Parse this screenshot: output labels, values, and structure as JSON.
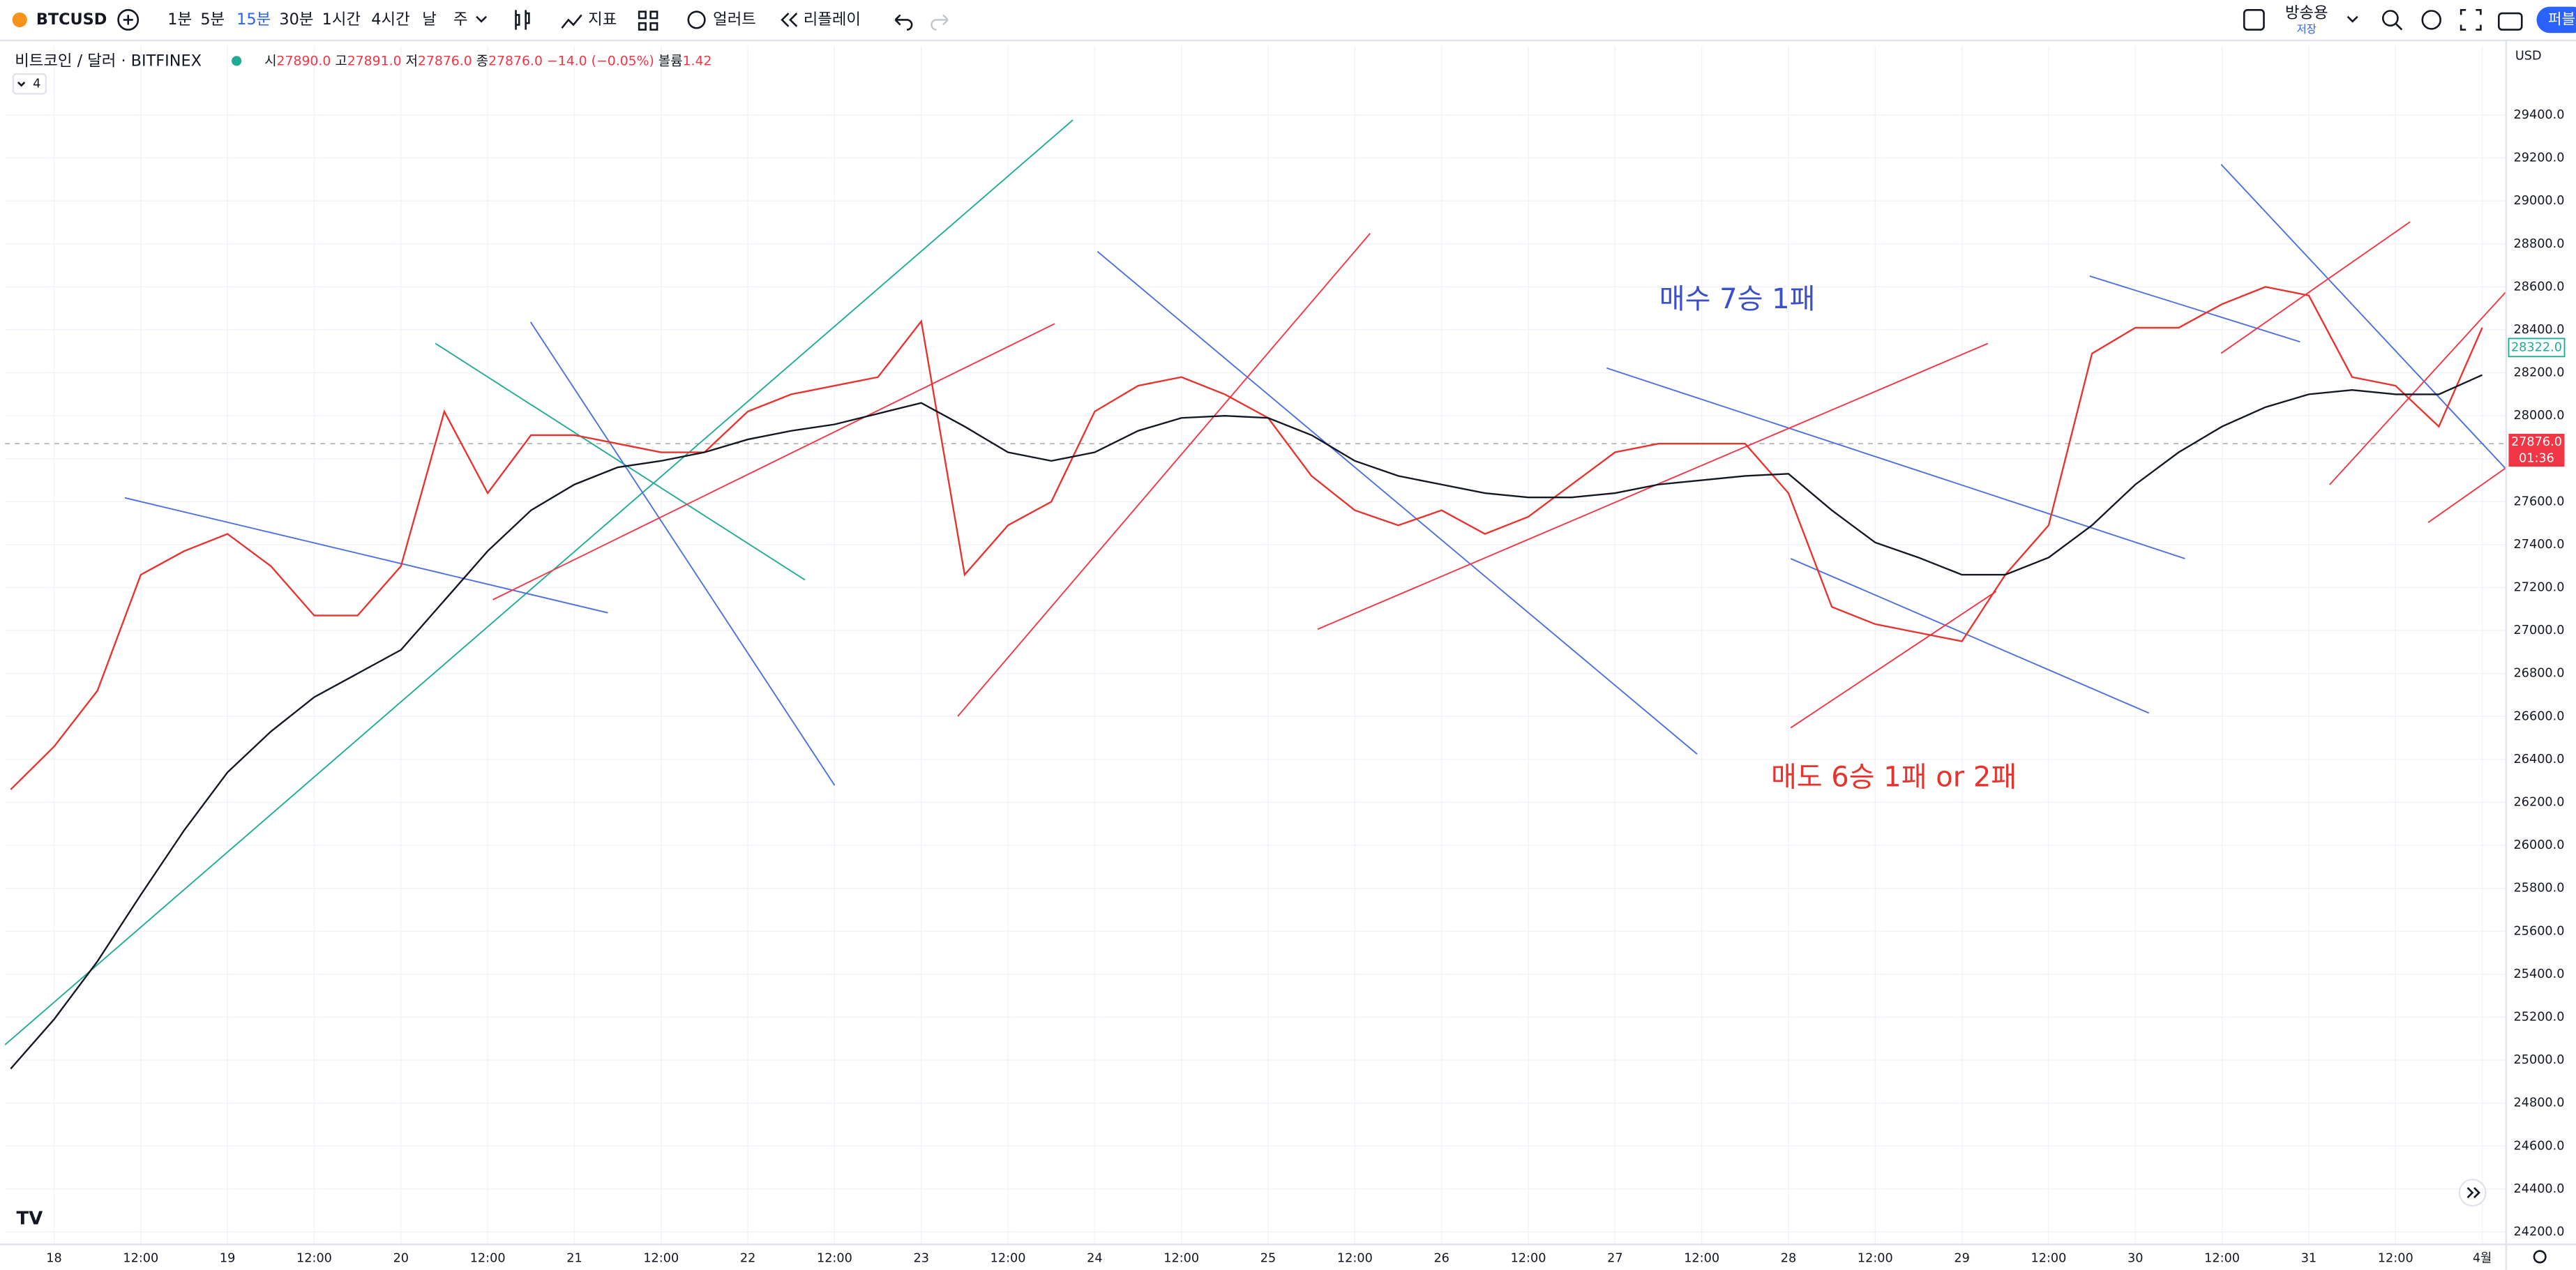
{
  "toolbar": {
    "symbol": "BTCUSD",
    "intervals": [
      {
        "label": "1분",
        "active": false
      },
      {
        "label": "5분",
        "active": false
      },
      {
        "label": "15분",
        "active": true
      },
      {
        "label": "30분",
        "active": false
      },
      {
        "label": "1시간",
        "active": false
      },
      {
        "label": "4시간",
        "active": false
      },
      {
        "label": "날",
        "active": false
      },
      {
        "label": "주",
        "active": false
      }
    ],
    "indicators": "지표",
    "alert": "얼러트",
    "replay": "리플레이",
    "layout_name": "방송용",
    "save_status": "저장",
    "publish": "퍼블"
  },
  "legend": {
    "title": "비트코인 / 달러 · BITFINEX",
    "open_label": "시",
    "open": "27890.0",
    "high_label": "고",
    "high": "27891.0",
    "low_label": "저",
    "low": "27876.0",
    "close_label": "종",
    "close": "27876.0",
    "change": "−14.0 (−0.05%)",
    "volume_label": "볼륨",
    "volume": "1.42",
    "indicator_count": "4"
  },
  "price_scale": {
    "currency": "USD",
    "ma_value": "28322.0",
    "last_price": "27876.0",
    "countdown": "01:36"
  },
  "chart_data": {
    "type": "line",
    "grid": true,
    "annotations": [
      "매수 7승 1패",
      "매도 6승 1패 or 2패"
    ],
    "x": [
      -6,
      0,
      6,
      12,
      18,
      24,
      30,
      36,
      42,
      48,
      54,
      60,
      66,
      72,
      78,
      84,
      90,
      96,
      102,
      108,
      114,
      120,
      126,
      132,
      138,
      144,
      150,
      156,
      162,
      168,
      174,
      180,
      186,
      192,
      198,
      204,
      210,
      216,
      222,
      228,
      234,
      240,
      246,
      252,
      258,
      264,
      270,
      276,
      282,
      288,
      294,
      300,
      306,
      312,
      318,
      324,
      330,
      336
    ],
    "series": [
      {
        "color": "#e8322d",
        "values": [
          26260,
          26460,
          26720,
          27260,
          27370,
          27450,
          27300,
          27070,
          27070,
          27300,
          28020,
          27640,
          27910,
          27910,
          27870,
          27830,
          27830,
          28020,
          28100,
          28140,
          28180,
          28440,
          27260,
          27490,
          27600,
          28020,
          28140,
          28180,
          28100,
          27990,
          27720,
          27560,
          27490,
          27560,
          27450,
          27530,
          27680,
          27830,
          27870,
          27870,
          27870,
          27640,
          27110,
          27030,
          26990,
          26950,
          27260,
          27490,
          28290,
          28410,
          28410,
          28520,
          28600,
          28560,
          28180,
          28140,
          27950,
          28410
        ]
      },
      {
        "color": "#131722",
        "values": [
          24960,
          25190,
          25460,
          25770,
          26070,
          26340,
          26530,
          26690,
          26800,
          26910,
          27140,
          27370,
          27560,
          27680,
          27760,
          27790,
          27830,
          27890,
          27930,
          27960,
          28010,
          28060,
          27950,
          27830,
          27790,
          27830,
          27930,
          27990,
          28000,
          27990,
          27910,
          27790,
          27720,
          27680,
          27640,
          27620,
          27620,
          27640,
          27680,
          27700,
          27720,
          27730,
          27560,
          27410,
          27340,
          27260,
          27260,
          27340,
          27490,
          27680,
          27830,
          27950,
          28040,
          28100,
          28120,
          28100,
          28100,
          28190
        ]
      }
    ],
    "xlim": [
      -6.8,
      339.2
    ],
    "xticks": [
      {
        "value": 0,
        "label": "18"
      },
      {
        "value": 12,
        "label": "12:00"
      },
      {
        "value": 24,
        "label": "19"
      },
      {
        "value": 36,
        "label": "12:00"
      },
      {
        "value": 48,
        "label": "20"
      },
      {
        "value": 60,
        "label": "12:00"
      },
      {
        "value": 72,
        "label": "21"
      },
      {
        "value": 84,
        "label": "12:00"
      },
      {
        "value": 96,
        "label": "22"
      },
      {
        "value": 108,
        "label": "12:00"
      },
      {
        "value": 120,
        "label": "23"
      },
      {
        "value": 132,
        "label": "12:00"
      },
      {
        "value": 144,
        "label": "24"
      },
      {
        "value": 156,
        "label": "12:00"
      },
      {
        "value": 168,
        "label": "25"
      },
      {
        "value": 180,
        "label": "12:00"
      },
      {
        "value": 192,
        "label": "26"
      },
      {
        "value": 204,
        "label": "12:00"
      },
      {
        "value": 216,
        "label": "27"
      },
      {
        "value": 228,
        "label": "12:00"
      },
      {
        "value": 240,
        "label": "28"
      },
      {
        "value": 252,
        "label": "12:00"
      },
      {
        "value": 264,
        "label": "29"
      },
      {
        "value": 276,
        "label": "12:00"
      },
      {
        "value": 288,
        "label": "30"
      },
      {
        "value": 300,
        "label": "12:00"
      },
      {
        "value": 312,
        "label": "31"
      },
      {
        "value": 324,
        "label": "12:00"
      },
      {
        "value": 336,
        "label": "4월"
      }
    ],
    "ylim": [
      24146,
      29721
    ],
    "yticks": [
      {
        "value": 24200,
        "label": "24200.0"
      },
      {
        "value": 24400,
        "label": "24400.0"
      },
      {
        "value": 24600,
        "label": "24600.0"
      },
      {
        "value": 24800,
        "label": "24800.0"
      },
      {
        "value": 25000,
        "label": "25000.0"
      },
      {
        "value": 25200,
        "label": "25200.0"
      },
      {
        "value": 25400,
        "label": "25400.0"
      },
      {
        "value": 25600,
        "label": "25600.0"
      },
      {
        "value": 25800,
        "label": "25800.0"
      },
      {
        "value": 26000,
        "label": "26000.0"
      },
      {
        "value": 26200,
        "label": "26200.0"
      },
      {
        "value": 26400,
        "label": "26400.0"
      },
      {
        "value": 26600,
        "label": "26600.0"
      },
      {
        "value": 26800,
        "label": "26800.0"
      },
      {
        "value": 27000,
        "label": "27000.0"
      },
      {
        "value": 27200,
        "label": "27200.0"
      },
      {
        "value": 27400,
        "label": "27400.0"
      },
      {
        "value": 27600,
        "label": "27600.0"
      },
      {
        "value": 27800,
        "label": "27800.0"
      },
      {
        "value": 28000,
        "label": "28000.0"
      },
      {
        "value": 28200,
        "label": "28200.0"
      },
      {
        "value": 28400,
        "label": "28400.0"
      },
      {
        "value": 28600,
        "label": "28600.0"
      },
      {
        "value": 28800,
        "label": "28800.0"
      },
      {
        "value": 29000,
        "label": "29000.0"
      },
      {
        "value": 29200,
        "label": "29200.0"
      },
      {
        "value": 29400,
        "label": "29400.0"
      }
    ]
  }
}
